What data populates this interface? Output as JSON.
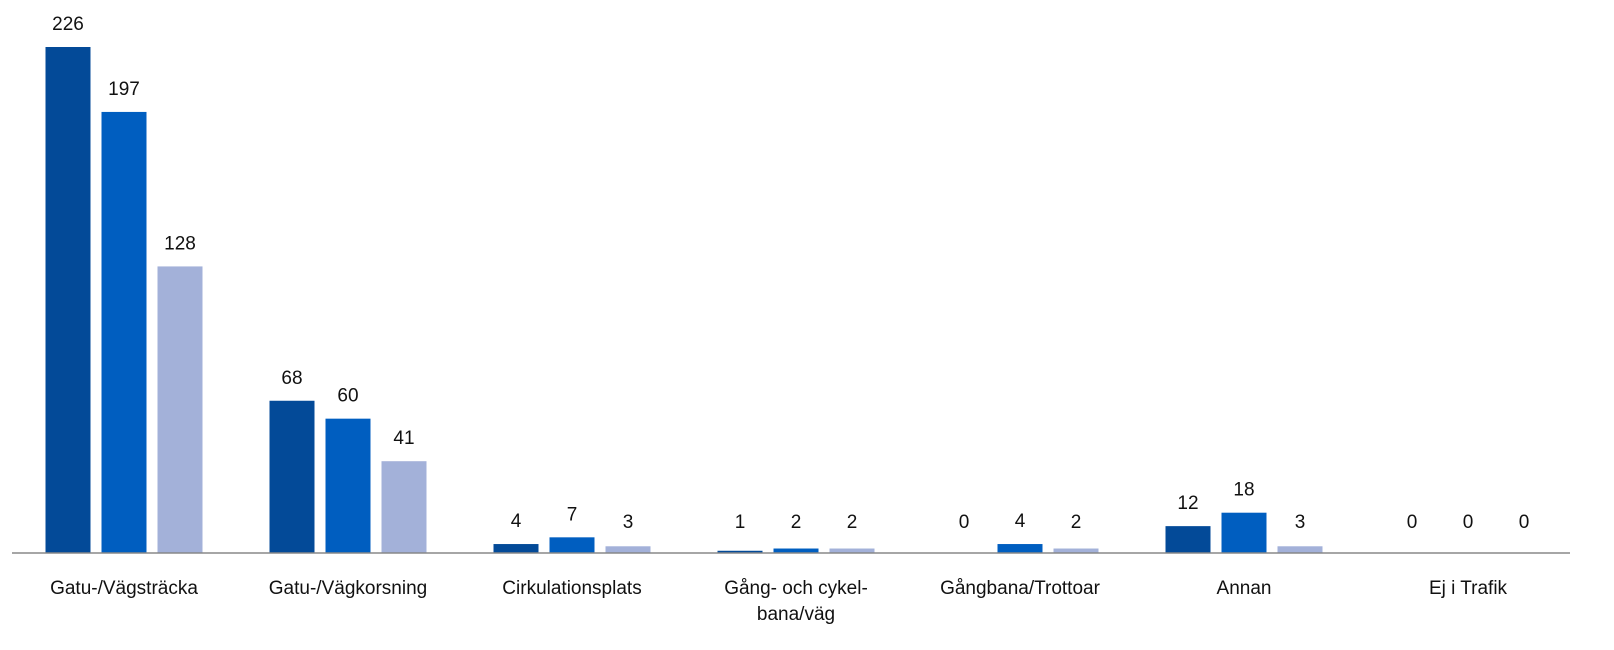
{
  "chart_data": {
    "type": "bar",
    "categories": [
      "Gatu-/Vägsträcka",
      "Gatu-/Vägkorsning",
      "Cirkulationsplats",
      "Gång- och cykel-\nbana/väg",
      "Gångbana/Trottoar",
      "Annan",
      "Ej i Trafik"
    ],
    "series": [
      {
        "color": "#034a98",
        "values": [
          226,
          68,
          4,
          1,
          0,
          12,
          0
        ]
      },
      {
        "color": "#005ec0",
        "values": [
          197,
          60,
          7,
          2,
          4,
          18,
          0
        ]
      },
      {
        "color": "#a3b1d9",
        "values": [
          128,
          41,
          3,
          2,
          2,
          3,
          0
        ]
      }
    ]
  }
}
